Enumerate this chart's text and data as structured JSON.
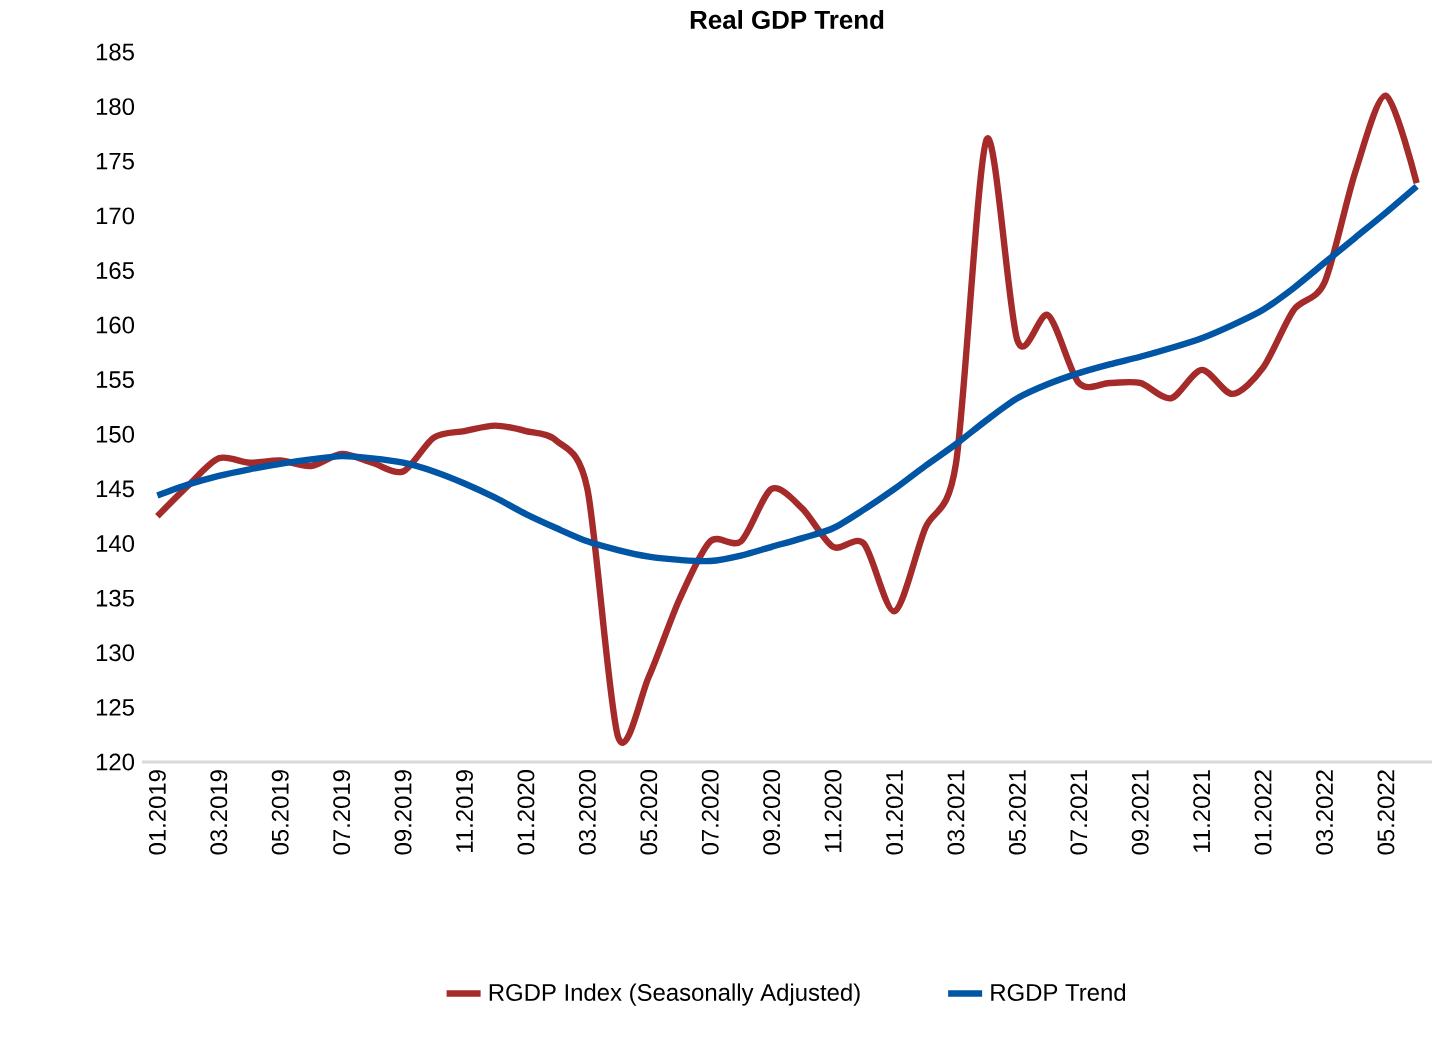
{
  "chart_data": {
    "type": "line",
    "title": "Real GDP Trend",
    "categories": [
      "01.2019",
      null,
      "03.2019",
      null,
      "05.2019",
      null,
      "07.2019",
      null,
      "09.2019",
      null,
      "11.2019",
      null,
      "01.2020",
      null,
      "03.2020",
      null,
      "05.2020",
      null,
      "07.2020",
      null,
      "09.2020",
      null,
      "11.2020",
      null,
      "01.2021",
      null,
      "03.2021",
      null,
      "05.2021",
      null,
      "07.2021",
      null,
      "09.2021",
      null,
      "11.2021",
      null,
      "01.2022",
      null,
      "03.2022",
      null,
      "05.2022",
      null
    ],
    "series": [
      {
        "name": "RGDP Index (Seasonally Adjusted)",
        "color": "#a52a2a",
        "values": [
          142.5,
          145.3,
          147.8,
          147.4,
          147.6,
          147.1,
          148.2,
          147.4,
          146.6,
          149.7,
          150.3,
          150.8,
          150.3,
          149.4,
          145.0,
          122.3,
          127.8,
          134.9,
          140.2,
          140.2,
          145.0,
          143.2,
          139.7,
          140.0,
          133.8,
          141.4,
          147.3,
          177.0,
          158.6,
          160.9,
          154.7,
          154.7,
          154.7,
          153.3,
          155.9,
          153.7,
          156.1,
          161.4,
          163.9,
          174.0,
          181.0,
          173.0
        ]
      },
      {
        "name": "RGDP Trend",
        "color": "#0055a5",
        "values": [
          144.4,
          145.4,
          146.2,
          146.8,
          147.3,
          147.7,
          148.0,
          147.8,
          147.4,
          146.6,
          145.5,
          144.2,
          142.7,
          141.4,
          140.2,
          139.4,
          138.8,
          138.5,
          138.4,
          138.9,
          139.7,
          140.5,
          141.4,
          143.1,
          145.0,
          147.1,
          149.1,
          151.3,
          153.3,
          154.6,
          155.6,
          156.4,
          157.1,
          157.9,
          158.8,
          160.0,
          161.4,
          163.4,
          165.7,
          168.0,
          170.3,
          172.7
        ]
      }
    ],
    "ylim": [
      120,
      185
    ],
    "yticks": [
      120,
      125,
      130,
      135,
      140,
      145,
      150,
      155,
      160,
      165,
      170,
      175,
      180,
      185
    ],
    "legend": "bottom",
    "line_style": "solid",
    "marker": "none"
  }
}
